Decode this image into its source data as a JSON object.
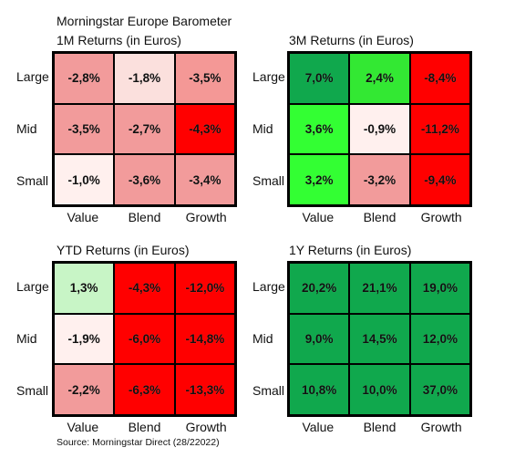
{
  "title": "Morningstar Europe Barometer",
  "source": "Source: Morningstar Direct (28/22022)",
  "chart_data": [
    {
      "type": "heatmap",
      "title": "1M Returns (in Euros)",
      "rows": [
        "Large",
        "Mid",
        "Small"
      ],
      "columns": [
        "Value",
        "Blend",
        "Growth"
      ],
      "values": [
        [
          "-2,8%",
          "-1,8%",
          "-3,5%"
        ],
        [
          "-3,5%",
          "-2,7%",
          "-4,3%"
        ],
        [
          "-1,0%",
          "-3,6%",
          "-3,4%"
        ]
      ],
      "colors": [
        [
          "#f29b9b",
          "#fbe0dd",
          "#f49896"
        ],
        [
          "#f29b9b",
          "#f29b9b",
          "#ff0000"
        ],
        [
          "#fff0ee",
          "#f29b9b",
          "#f29b9b"
        ]
      ]
    },
    {
      "type": "heatmap",
      "title": "3M Returns (in Euros)",
      "rows": [
        "Large",
        "Mid",
        "Small"
      ],
      "columns": [
        "Value",
        "Blend",
        "Growth"
      ],
      "values": [
        [
          "7,0%",
          "2,4%",
          "-8,4%"
        ],
        [
          "3,6%",
          "-0,9%",
          "-11,2%"
        ],
        [
          "3,2%",
          "-3,2%",
          "-9,4%"
        ]
      ],
      "colors": [
        [
          "#10a84d",
          "#33e833",
          "#ff0000"
        ],
        [
          "#33ff33",
          "#fff0ee",
          "#ff0000"
        ],
        [
          "#33ff33",
          "#f29b9b",
          "#ff0000"
        ]
      ]
    },
    {
      "type": "heatmap",
      "title": "YTD Returns (in Euros)",
      "rows": [
        "Large",
        "Mid",
        "Small"
      ],
      "columns": [
        "Value",
        "Blend",
        "Growth"
      ],
      "values": [
        [
          "1,3%",
          "-4,3%",
          "-12,0%"
        ],
        [
          "-1,9%",
          "-6,0%",
          "-14,8%"
        ],
        [
          "-2,2%",
          "-6,3%",
          "-13,3%"
        ]
      ],
      "colors": [
        [
          "#c8f5c6",
          "#ff0000",
          "#ff0000"
        ],
        [
          "#fff0ee",
          "#ff0000",
          "#ff0000"
        ],
        [
          "#f29b9b",
          "#ff0000",
          "#ff0000"
        ]
      ]
    },
    {
      "type": "heatmap",
      "title": "1Y Returns (in Euros)",
      "rows": [
        "Large",
        "Mid",
        "Small"
      ],
      "columns": [
        "Value",
        "Blend",
        "Growth"
      ],
      "values": [
        [
          "20,2%",
          "21,1%",
          "19,0%"
        ],
        [
          "9,0%",
          "14,5%",
          "12,0%"
        ],
        [
          "10,8%",
          "10,0%",
          "37,0%"
        ]
      ],
      "colors": [
        [
          "#10a84d",
          "#10a84d",
          "#10a84d"
        ],
        [
          "#10a84d",
          "#10a84d",
          "#10a84d"
        ],
        [
          "#10a84d",
          "#10a84d",
          "#10a84d"
        ]
      ]
    }
  ]
}
